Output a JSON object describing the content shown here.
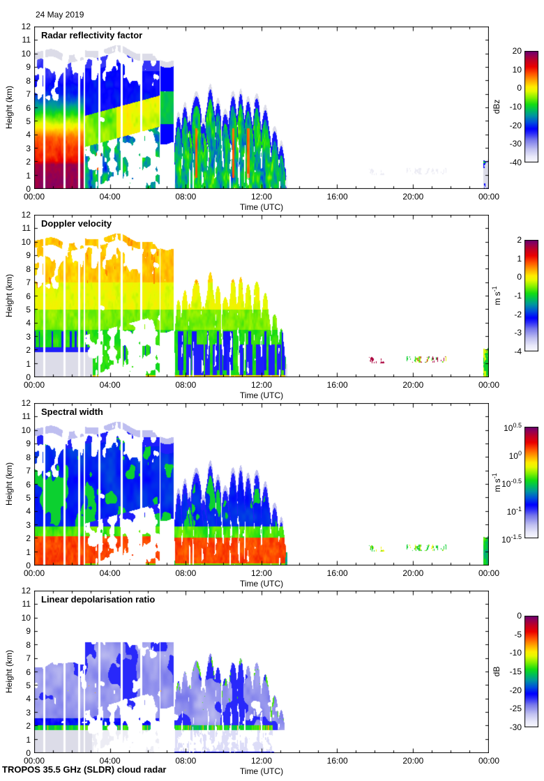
{
  "page": {
    "date": "24 May 2019",
    "credit": "TROPOS 35.5 GHz (SLDR) cloud radar"
  },
  "chart_data": {
    "type": "heatmap",
    "description": "Four time-height panels of cloud radar measurements over 24 hours",
    "x_axis": {
      "label": "Time (UTC)",
      "tick_labels": [
        "00:00",
        "04:00",
        "08:00",
        "12:00",
        "16:00",
        "20:00",
        "00:00"
      ],
      "tick_hours": [
        0,
        4,
        8,
        12,
        16,
        20,
        24
      ],
      "minor_every_hours": 1,
      "range_hours": [
        0,
        24
      ]
    },
    "y_axis": {
      "label": "Height (km)",
      "tick_labels": [
        "0",
        "1",
        "2",
        "3",
        "4",
        "5",
        "6",
        "7",
        "8",
        "9",
        "10",
        "11",
        "12"
      ],
      "tick_values": [
        0,
        1,
        2,
        3,
        4,
        5,
        6,
        7,
        8,
        9,
        10,
        11,
        12
      ],
      "range_km": [
        0,
        12
      ]
    },
    "panels": [
      {
        "title": "Radar reflectivity factor",
        "style": "reflectivity",
        "unit": "dBz",
        "cb_ticks": [
          "20",
          "10",
          "0",
          "-10",
          "-20",
          "-30",
          "-40"
        ],
        "cb_range": [
          20,
          -40
        ],
        "cb_scale": "linear"
      },
      {
        "title": "Doppler velocity",
        "style": "velocity",
        "unit": "m s^-1",
        "cb_ticks": [
          "2",
          "1",
          "0",
          "-1",
          "-2",
          "-3",
          "-4"
        ],
        "cb_range": [
          2,
          -4
        ],
        "cb_scale": "linear"
      },
      {
        "title": "Spectral width",
        "style": "width",
        "unit": "m s^-1",
        "cb_ticks": [
          "10^0.5",
          "10^0",
          "10^-0.5",
          "10^-1",
          "10^-1.5"
        ],
        "cb_range": [
          0.5,
          -1.5
        ],
        "cb_scale": "log"
      },
      {
        "title": "Linear depolarisation ratio",
        "style": "ldr",
        "unit": "dB",
        "cb_ticks": [
          "0",
          "-5",
          "-10",
          "-15",
          "-20",
          "-25",
          "-30"
        ],
        "cb_range": [
          0,
          -30
        ],
        "cb_scale": "linear"
      }
    ],
    "colormap": [
      [
        0.0,
        "#fafaff"
      ],
      [
        0.05,
        "#e8e8fa"
      ],
      [
        0.12,
        "#bebef0"
      ],
      [
        0.2,
        "#7878eb"
      ],
      [
        0.26,
        "#2828fa"
      ],
      [
        0.3,
        "#0000ff"
      ],
      [
        0.36,
        "#0050dc"
      ],
      [
        0.42,
        "#0096a0"
      ],
      [
        0.47,
        "#00be5a"
      ],
      [
        0.52,
        "#14dc14"
      ],
      [
        0.58,
        "#82f000"
      ],
      [
        0.64,
        "#e6fa00"
      ],
      [
        0.68,
        "#ffeb00"
      ],
      [
        0.74,
        "#ffa000"
      ],
      [
        0.8,
        "#ff5000"
      ],
      [
        0.86,
        "#eb0000"
      ],
      [
        0.92,
        "#be0028"
      ],
      [
        0.97,
        "#8c005a"
      ],
      [
        1.0,
        "#68006e"
      ]
    ],
    "missing_gray": "#dcdce8",
    "faint_gray": "#ececf4",
    "background": "#ffffff",
    "events": {
      "gaps_hours": [
        0.55,
        1.6,
        2.39,
        3.43,
        4.62,
        5.66
      ],
      "gap_halfwidth_hours": 0.055,
      "rain": {
        "t0": 0,
        "t1": 2.62,
        "top_km": 9.0,
        "top_var_km": 1.4
      },
      "mid": {
        "t0": 2.68,
        "t1": 6.62,
        "top_km": 9.4,
        "top_var_km": 1.2,
        "core_lo_km": 3.1,
        "core_slope": 0.38
      },
      "anvil": {
        "t0": 6.65,
        "t1": 7.38,
        "top_km": 8.8,
        "base_km": 3.4
      },
      "cells": [
        [
          7.62,
          0.1,
          5.3
        ],
        [
          7.95,
          0.12,
          6.0
        ],
        [
          8.2,
          0.1,
          5.2
        ],
        [
          8.55,
          0.18,
          7.0
        ],
        [
          8.95,
          0.12,
          5.0
        ],
        [
          9.3,
          0.15,
          7.3
        ],
        [
          9.7,
          0.12,
          6.3
        ],
        [
          10.1,
          0.14,
          5.5
        ],
        [
          10.5,
          0.15,
          7.0
        ],
        [
          10.9,
          0.12,
          7.1
        ],
        [
          11.3,
          0.16,
          6.4
        ],
        [
          11.75,
          0.14,
          6.7
        ],
        [
          12.2,
          0.15,
          5.7
        ],
        [
          12.7,
          0.12,
          4.3
        ],
        [
          13.05,
          0.1,
          3.0
        ]
      ],
      "hot_cells": [
        8.55,
        10.5,
        11.3
      ],
      "debris": {
        "t0": 7.4,
        "t1": 13.35,
        "top_km": 1.0
      },
      "specks": [
        {
          "t0": 17.55,
          "t1": 18.55,
          "h_km": 1.25
        },
        {
          "t0": 19.6,
          "t1": 21.75,
          "h_km": 1.3
        }
      ],
      "edge_cell": {
        "t0": 23.72,
        "t1": 24.0,
        "top_km": 2.2
      },
      "melting_layer_km": 1.9,
      "rain_gray_band": {
        "t1": 3.1,
        "top_km": 1.85
      },
      "ldr_max_top_km": 8.2
    }
  }
}
